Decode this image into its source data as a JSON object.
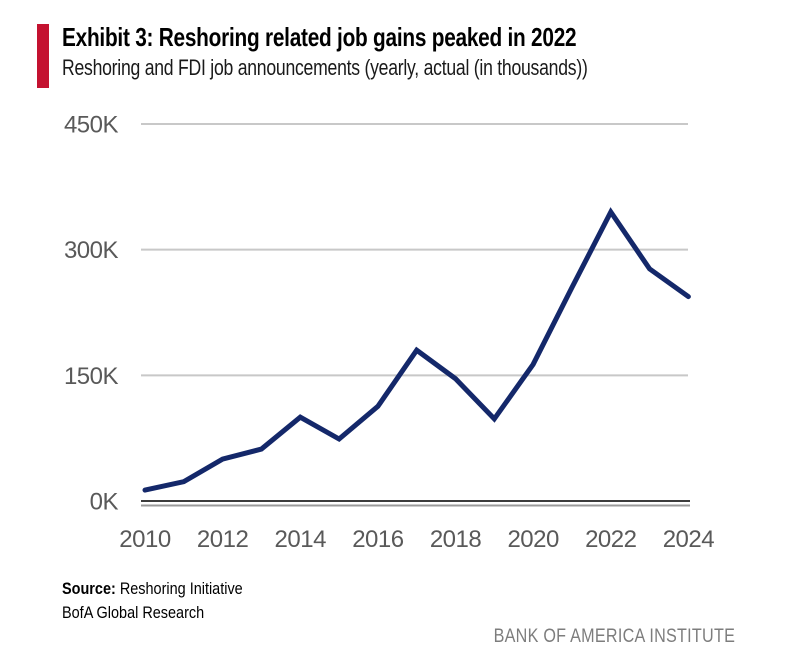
{
  "header": {
    "exhibit_title": "Exhibit 3: Reshoring related job gains peaked in 2022",
    "subtitle": "Reshoring and FDI job announcements (yearly, actual (in thousands))",
    "accent_color": "#C41230"
  },
  "chart_data": {
    "type": "line",
    "title": "Exhibit 3: Reshoring related job gains peaked in 2022",
    "subtitle": "Reshoring and FDI job announcements (yearly, actual (in thousands))",
    "series_name": "Reshoring and FDI job announcements (thousands)",
    "x": [
      2010,
      2011,
      2012,
      2013,
      2014,
      2015,
      2016,
      2017,
      2018,
      2019,
      2020,
      2021,
      2022,
      2023,
      2024
    ],
    "values": [
      13,
      23,
      50,
      62,
      100,
      74,
      113,
      180,
      146,
      98,
      163,
      255,
      345,
      277,
      244
    ],
    "units": "thousands of jobs",
    "xlabel": "",
    "ylabel": "",
    "xlim": [
      2010,
      2024
    ],
    "ylim": [
      0,
      450
    ],
    "yticks": [
      {
        "value": 0,
        "label": "0K"
      },
      {
        "value": 150,
        "label": "150K"
      },
      {
        "value": 300,
        "label": "300K"
      },
      {
        "value": 450,
        "label": "450K"
      }
    ],
    "xticks": [
      {
        "value": 2010,
        "label": "2010"
      },
      {
        "value": 2012,
        "label": "2012"
      },
      {
        "value": 2014,
        "label": "2014"
      },
      {
        "value": 2016,
        "label": "2016"
      },
      {
        "value": 2018,
        "label": "2018"
      },
      {
        "value": 2020,
        "label": "2020"
      },
      {
        "value": 2022,
        "label": "2022"
      },
      {
        "value": 2024,
        "label": "2024"
      }
    ],
    "grid": "horizontal",
    "legend": "none",
    "line_color": "#14286A",
    "gridline_color": "#C8C8C8",
    "axis_line_color": "#3C3C3C",
    "axis_line_shadow_color": "#9A9A9A",
    "tick_label_color": "#595959"
  },
  "footer": {
    "source_label": "Source:",
    "source_value": " Reshoring Initiative",
    "source_line2": "BofA Global Research",
    "brand": "BANK OF AMERICA INSTITUTE"
  }
}
